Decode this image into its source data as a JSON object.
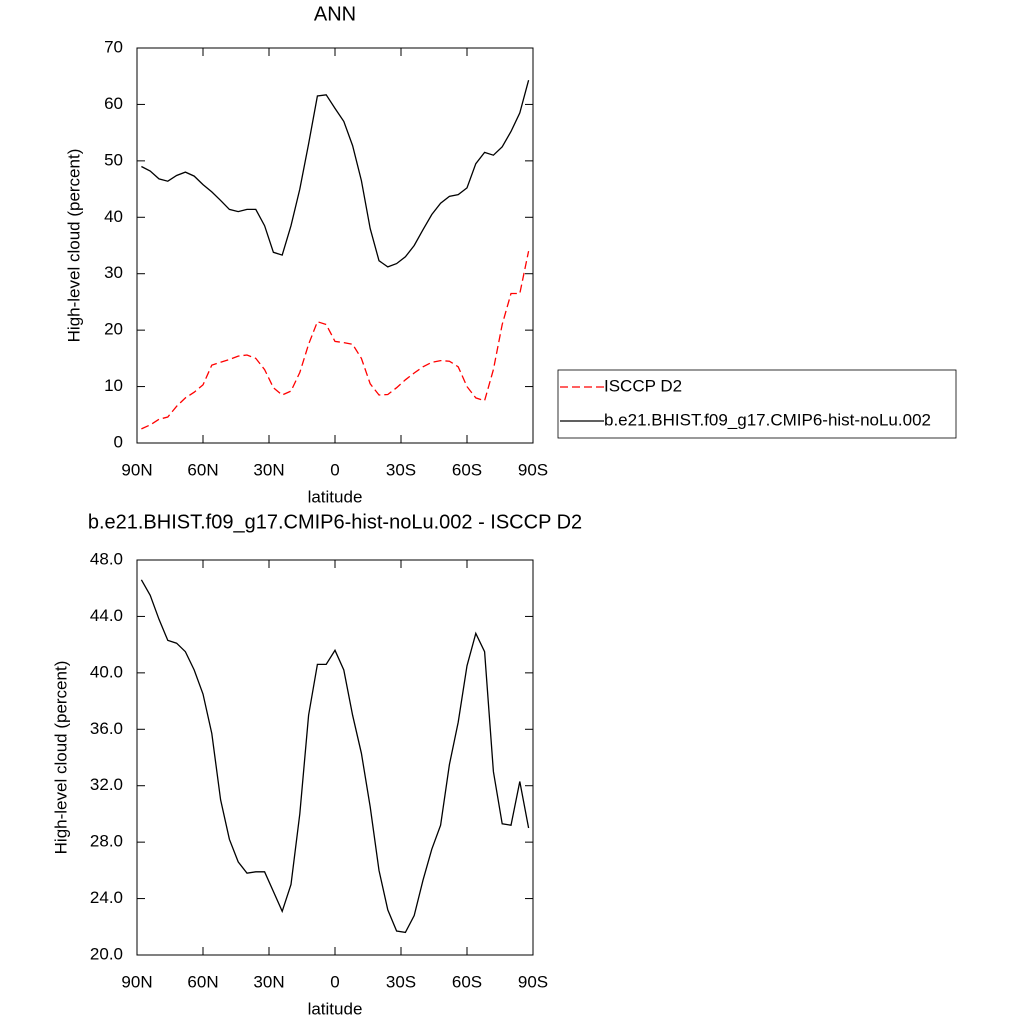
{
  "chart_data": [
    {
      "type": "line",
      "title": "ANN",
      "xlabel": "latitude",
      "ylabel": "High-level cloud (percent)",
      "x": [
        88,
        84,
        80,
        76,
        72,
        68,
        64,
        60,
        56,
        52,
        48,
        44,
        40,
        36,
        32,
        28,
        24,
        20,
        16,
        12,
        8,
        4,
        0,
        -4,
        -8,
        -12,
        -16,
        -20,
        -24,
        -28,
        -32,
        -36,
        -40,
        -44,
        -48,
        -52,
        -56,
        -60,
        -64,
        -68,
        -72,
        -76,
        -80,
        -84,
        -88
      ],
      "xlim": [
        90,
        -90
      ],
      "xticks": [
        {
          "value": 90,
          "label": "90N"
        },
        {
          "value": 60,
          "label": "60N"
        },
        {
          "value": 30,
          "label": "30N"
        },
        0,
        {
          "value": -30,
          "label": "30S"
        },
        {
          "value": -60,
          "label": "60S"
        },
        {
          "value": -90,
          "label": "90S"
        }
      ],
      "ylim": [
        0,
        70
      ],
      "yticks": [
        0,
        10,
        20,
        30,
        40,
        50,
        60,
        70
      ],
      "legend": "right",
      "series": [
        {
          "name": "ISCCP D2",
          "color": "#ff0000",
          "line_style": "dashed",
          "values": [
            2.5,
            3.2,
            4.2,
            4.6,
            6.5,
            8.0,
            9.0,
            10.3,
            13.8,
            14.3,
            14.8,
            15.4,
            15.6,
            15.0,
            13.0,
            9.8,
            8.5,
            9.2,
            12.5,
            17.5,
            21.5,
            21.0,
            18.0,
            17.8,
            17.5,
            15.0,
            10.5,
            8.5,
            8.6,
            9.8,
            11.2,
            12.4,
            13.5,
            14.3,
            14.6,
            14.5,
            13.5,
            10.0,
            8.0,
            7.5,
            13.0,
            21.0,
            26.5,
            26.5,
            34.0
          ]
        },
        {
          "name": "b.e21.BHIST.f09_g17.CMIP6-hist-noLu.002",
          "color": "#000000",
          "line_style": "solid",
          "values": [
            49.0,
            48.2,
            46.8,
            46.4,
            47.4,
            48.0,
            47.3,
            45.8,
            44.5,
            43.0,
            41.4,
            41.0,
            41.4,
            41.4,
            38.5,
            33.8,
            33.3,
            38.5,
            45.0,
            53.0,
            61.5,
            61.7,
            59.3,
            57.0,
            52.7,
            46.5,
            38.0,
            32.3,
            31.2,
            31.8,
            33.0,
            35.0,
            37.8,
            40.5,
            42.5,
            43.7,
            44.0,
            45.2,
            49.5,
            51.5,
            51.0,
            52.5,
            55.2,
            58.5,
            64.3
          ]
        }
      ]
    },
    {
      "type": "line",
      "title": "b.e21.BHIST.f09_g17.CMIP6-hist-noLu.002 - ISCCP D2",
      "xlabel": "latitude",
      "ylabel": "High-level cloud (percent)",
      "x": [
        88,
        84,
        80,
        76,
        72,
        68,
        64,
        60,
        56,
        52,
        48,
        44,
        40,
        36,
        32,
        28,
        24,
        20,
        16,
        12,
        8,
        4,
        0,
        -4,
        -8,
        -12,
        -16,
        -20,
        -24,
        -28,
        -32,
        -36,
        -40,
        -44,
        -48,
        -52,
        -56,
        -60,
        -64,
        -68,
        -72,
        -76,
        -80,
        -84,
        -88
      ],
      "xlim": [
        90,
        -90
      ],
      "xticks": [
        {
          "value": 90,
          "label": "90N"
        },
        {
          "value": 60,
          "label": "60N"
        },
        {
          "value": 30,
          "label": "30N"
        },
        0,
        {
          "value": -30,
          "label": "30S"
        },
        {
          "value": -60,
          "label": "60S"
        },
        {
          "value": -90,
          "label": "90S"
        }
      ],
      "ylim": [
        20,
        48
      ],
      "yticks": [
        {
          "value": 20,
          "label": "20.0"
        },
        {
          "value": 24,
          "label": "24.0"
        },
        {
          "value": 28,
          "label": "28.0"
        },
        {
          "value": 32,
          "label": "32.0"
        },
        {
          "value": 36,
          "label": "36.0"
        },
        {
          "value": 40,
          "label": "40.0"
        },
        {
          "value": 44,
          "label": "44.0"
        },
        {
          "value": 48,
          "label": "48.0"
        }
      ],
      "color": "#000000",
      "values": [
        46.6,
        45.5,
        43.8,
        42.3,
        42.1,
        41.5,
        40.2,
        38.5,
        35.7,
        31.0,
        28.2,
        26.6,
        25.8,
        25.9,
        25.9,
        24.5,
        23.1,
        25.0,
        30.0,
        37.0,
        40.6,
        40.6,
        41.6,
        40.2,
        37.0,
        34.3,
        30.5,
        26.0,
        23.2,
        21.7,
        21.6,
        22.8,
        25.3,
        27.5,
        29.2,
        33.5,
        36.5,
        40.5,
        42.8,
        41.5,
        33.0,
        29.3,
        29.2,
        32.3,
        29.0
      ]
    }
  ]
}
